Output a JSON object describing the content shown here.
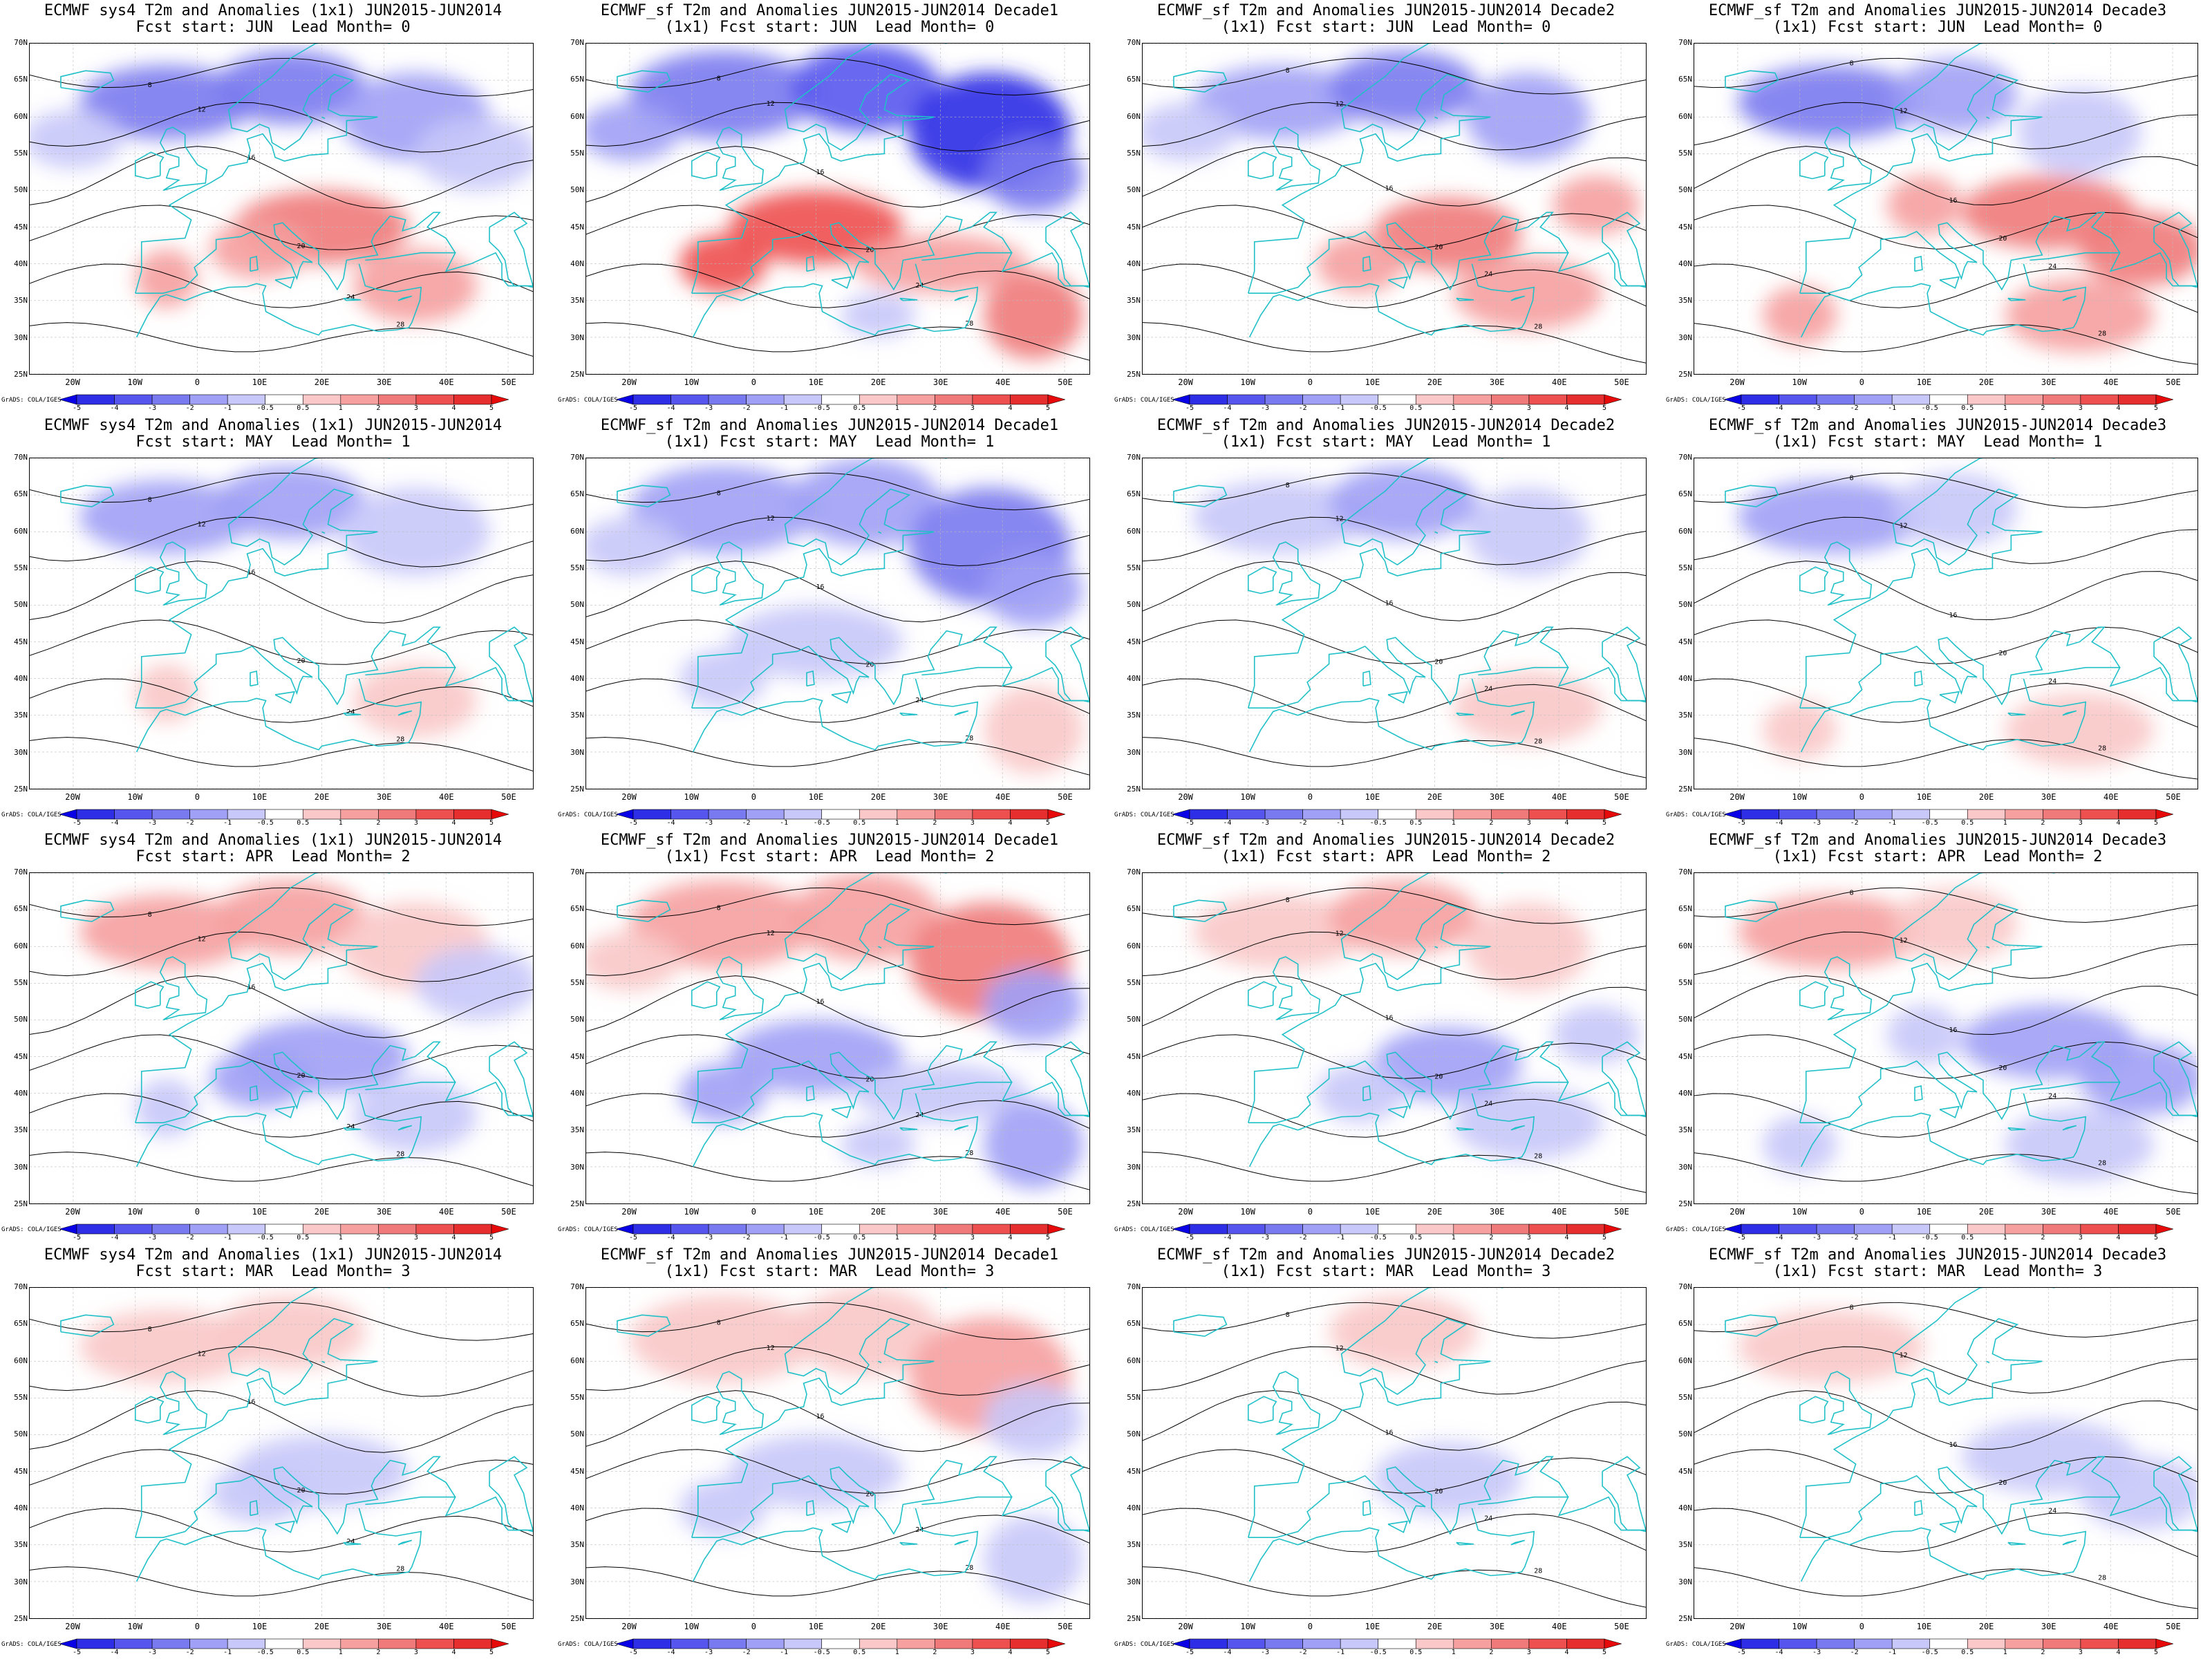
{
  "header": {
    "rows": [
      {
        "start": "JUN",
        "lead": "0"
      },
      {
        "start": "MAY",
        "lead": "1"
      },
      {
        "start": "APR",
        "lead": "2"
      },
      {
        "start": "MAR",
        "lead": "3"
      }
    ],
    "columns": [
      {
        "key": "sys4",
        "title1": "ECMWF sys4 T2m and Anomalies (1x1) JUN2015-JUN2014",
        "title2_prefix": ""
      },
      {
        "key": "dec1",
        "title1": "ECMWF_sf T2m and Anomalies JUN2015-JUN2014 Decade1",
        "title2_prefix": "(1x1) "
      },
      {
        "key": "dec2",
        "title1": "ECMWF_sf T2m and Anomalies JUN2015-JUN2014 Decade2",
        "title2_prefix": "(1x1) "
      },
      {
        "key": "dec3",
        "title1": "ECMWF_sf T2m and Anomalies JUN2015-JUN2014 Decade3",
        "title2_prefix": "(1x1) "
      }
    ]
  },
  "labels": {
    "fcst_prefix": "Fcst start: ",
    "lead_prefix": "  Lead Month= ",
    "credit": "GrADS: COLA/IGES"
  },
  "axes": {
    "lat_ticks": [
      "70N",
      "65N",
      "60N",
      "55N",
      "50N",
      "45N",
      "40N",
      "35N",
      "30N",
      "25N"
    ],
    "lon_ticks": [
      "20W",
      "10W",
      "0",
      "10E",
      "20E",
      "30E",
      "40E",
      "50E"
    ],
    "lat_range": [
      25,
      70
    ],
    "lon_range": [
      -27,
      54
    ]
  },
  "colorbar": {
    "ticks": [
      "-5",
      "-4",
      "-3",
      "-2",
      "-1",
      "-0.5",
      "0.5",
      "1",
      "2",
      "3",
      "4",
      "5"
    ],
    "colors": [
      "#0a00e6",
      "#2e2ee6",
      "#5656ee",
      "#7a7af0",
      "#a0a0f6",
      "#c8c8fa",
      "#ffffff",
      "#fac8c8",
      "#f6a0a0",
      "#f07a7a",
      "#ee5050",
      "#e62e2e",
      "#e60a0a"
    ]
  },
  "map_style": {
    "coast_color": "#20c0c8",
    "contour_color": "#000000"
  },
  "contour_labels": [
    "8",
    "12",
    "16",
    "20",
    "24",
    "28"
  ],
  "anomaly_scale": {
    "0": 0.85,
    "1": 0.3,
    "2": 0.35,
    "3": 0.25
  }
}
